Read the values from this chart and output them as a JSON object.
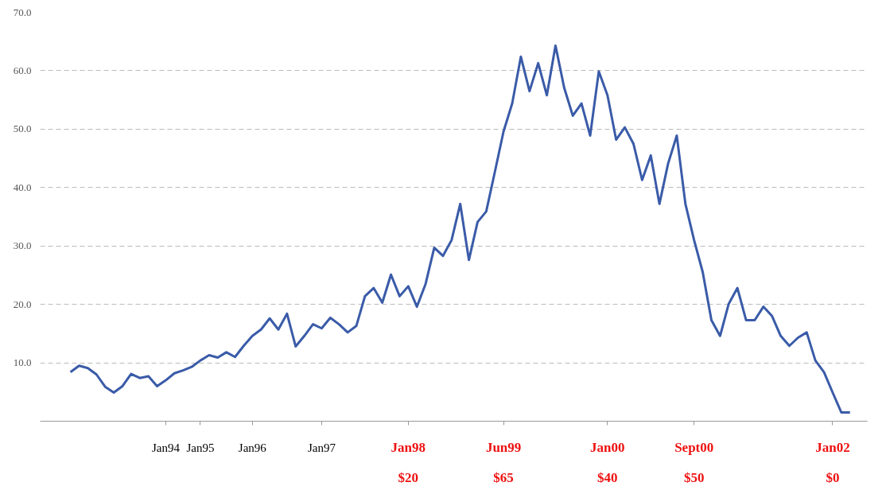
{
  "chart_data": {
    "type": "line",
    "categories": [
      null,
      null,
      null,
      null,
      null,
      null,
      null,
      null,
      null,
      null,
      null,
      "Jan94",
      null,
      null,
      null,
      "Jan95",
      null,
      null,
      null,
      null,
      null,
      "Jan96",
      null,
      null,
      null,
      null,
      null,
      null,
      null,
      "Jan97",
      null,
      null,
      null,
      null,
      null,
      null,
      null,
      null,
      null,
      "Jan98\n$20",
      null,
      null,
      null,
      null,
      null,
      null,
      null,
      null,
      null,
      null,
      "Jun99\n$65",
      null,
      null,
      null,
      null,
      null,
      null,
      null,
      null,
      null,
      null,
      null,
      "Jan00\n$40",
      null,
      null,
      null,
      null,
      null,
      null,
      null,
      null,
      null,
      "Sept00\n$50",
      null,
      null,
      null,
      null,
      null,
      null,
      null,
      null,
      null,
      null,
      null,
      null,
      null,
      null,
      null,
      "Jan02\n$0",
      null,
      null
    ],
    "series": [
      {
        "color": "#3a5ba8",
        "values": [
          8.4,
          9.5,
          9.1,
          8.0,
          5.9,
          4.9,
          6.0,
          8.1,
          7.4,
          7.7,
          6.0,
          7.0,
          8.2,
          8.7,
          9.3,
          10.4,
          11.3,
          10.9,
          11.8,
          11.0,
          12.9,
          14.6,
          15.7,
          17.6,
          15.7,
          18.4,
          12.8,
          14.6,
          16.6,
          15.9,
          17.7,
          16.6,
          15.2,
          16.3,
          21.4,
          22.8,
          20.3,
          25.1,
          21.4,
          23.1,
          19.6,
          23.5,
          29.7,
          28.3,
          31.0,
          37.2,
          27.6,
          34.1,
          35.9,
          42.7,
          49.6,
          54.4,
          62.4,
          56.5,
          61.3,
          55.8,
          64.3,
          57.1,
          52.3,
          54.4,
          48.9,
          59.9,
          55.8,
          48.2,
          50.3,
          47.5,
          41.3,
          45.5,
          37.2,
          44.1,
          48.9,
          37.2,
          31.0,
          25.5,
          17.3,
          14.6,
          20.1,
          22.8,
          17.3,
          17.3,
          19.6,
          18.0,
          14.6,
          12.9,
          14.3,
          15.2,
          10.4,
          8.4,
          4.9,
          1.5,
          1.5
        ]
      }
    ],
    "ylim": [
      0,
      70
    ],
    "yticks": [
      {
        "value": 0,
        "label": null
      },
      {
        "value": 10,
        "label": "10.0"
      },
      {
        "value": 20,
        "label": "20.0"
      },
      {
        "value": 30,
        "label": "30.0"
      },
      {
        "value": 40,
        "label": "40.0"
      },
      {
        "value": 50,
        "label": "50.0"
      },
      {
        "value": 60,
        "label": "60.0"
      },
      {
        "value": 70,
        "label": "70.0"
      }
    ],
    "grid": "y",
    "marker": "none",
    "line_style": "solid"
  }
}
